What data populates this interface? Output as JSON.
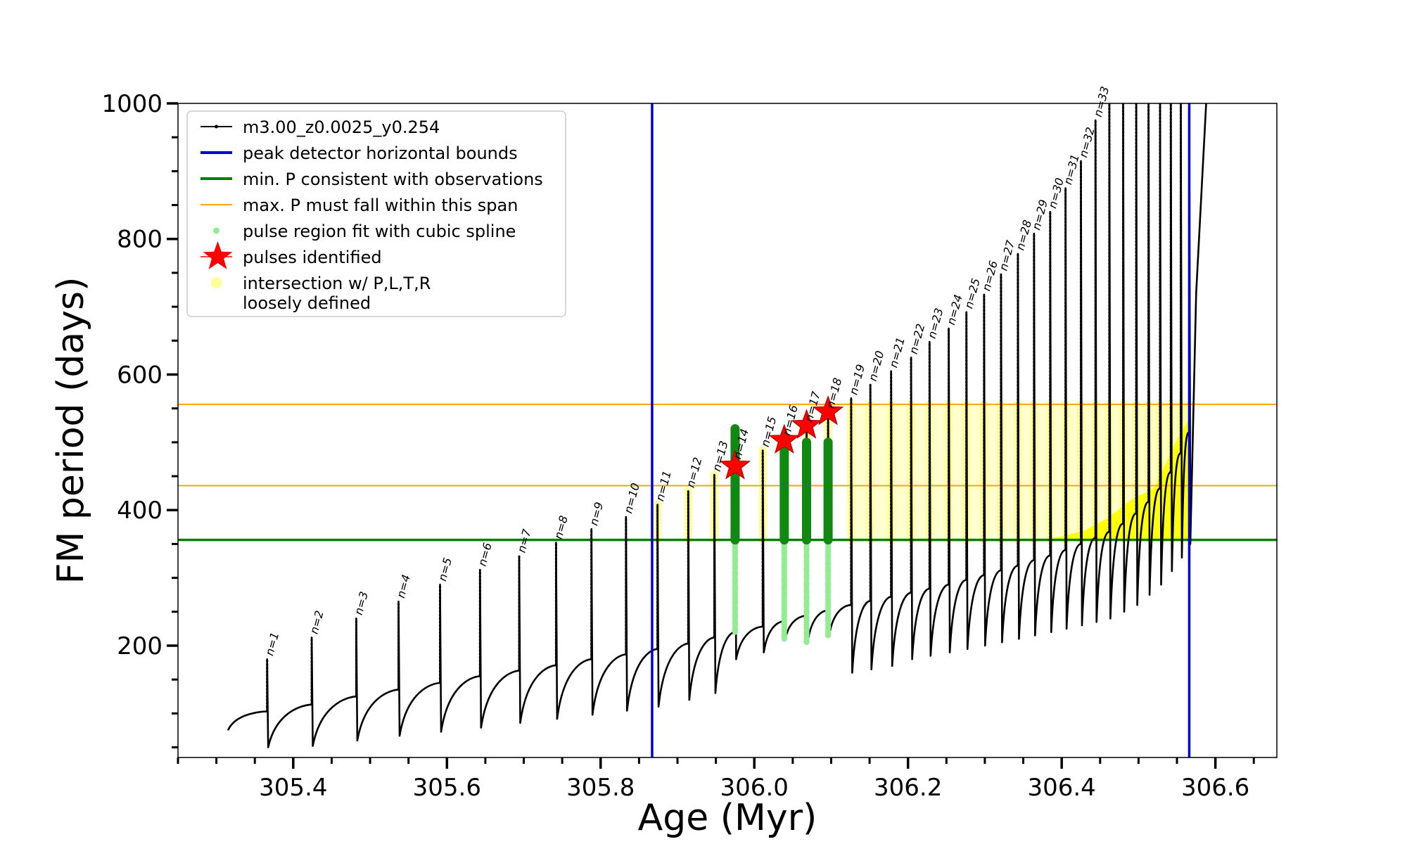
{
  "chart_data": {
    "type": "line",
    "xlabel": "Age (Myr)",
    "ylabel": "FM period (days)",
    "xlim": [
      305.25,
      306.68
    ],
    "ylim": [
      35,
      1000
    ],
    "xticks": [
      305.4,
      305.6,
      305.8,
      306.0,
      306.2,
      306.4,
      306.6
    ],
    "xtick_labels": [
      "305.4",
      "305.6",
      "305.8",
      "306.0",
      "306.2",
      "306.4",
      "306.6"
    ],
    "yticks": [
      200,
      400,
      600,
      800,
      1000
    ],
    "ytick_labels": [
      "200",
      "400",
      "600",
      "800",
      "1000"
    ],
    "grid": false,
    "legend_position": "top-left",
    "legend": [
      {
        "label": "m3.00_z0.0025_y0.254",
        "style": "line-dots",
        "color": "#000000"
      },
      {
        "label": "peak detector horizontal bounds",
        "style": "line",
        "color": "#0000dd"
      },
      {
        "label": "min. P consistent with observations",
        "style": "line",
        "color": "#008000"
      },
      {
        "label": "max. P must fall within this span",
        "style": "thin-line",
        "color": "#ffa500"
      },
      {
        "label": "pulse region fit with cubic spline",
        "style": "dot",
        "color": "#90ee90"
      },
      {
        "label": "pulses identified",
        "style": "star",
        "color": "#ff0000"
      },
      {
        "label": "intersection w/ P,L,T,R\nloosely defined",
        "style": "dot",
        "color": "#ffff99"
      }
    ],
    "vertical_lines": [
      {
        "x": 305.867,
        "color": "#0000dd"
      },
      {
        "x": 306.566,
        "color": "#0000dd"
      }
    ],
    "horizontal_lines": [
      {
        "y": 356,
        "color": "#008000"
      },
      {
        "y": 436,
        "color": "#ffa500"
      },
      {
        "y": 556,
        "color": "#ffa500"
      }
    ],
    "pulses": [
      {
        "label": "n=1",
        "age": 305.366,
        "peak": 180,
        "trough": 50,
        "base": 103
      },
      {
        "label": "n=2",
        "age": 305.424,
        "peak": 212,
        "trough": 52,
        "base": 113
      },
      {
        "label": "n=3",
        "age": 305.482,
        "peak": 240,
        "trough": 60,
        "base": 125
      },
      {
        "label": "n=4",
        "age": 305.537,
        "peak": 265,
        "trough": 67,
        "base": 135
      },
      {
        "label": "n=5",
        "age": 305.591,
        "peak": 290,
        "trough": 73,
        "base": 145
      },
      {
        "label": "n=6",
        "age": 305.643,
        "peak": 312,
        "trough": 79,
        "base": 155
      },
      {
        "label": "n=7",
        "age": 305.694,
        "peak": 332,
        "trough": 86,
        "base": 163
      },
      {
        "label": "n=8",
        "age": 305.742,
        "peak": 352,
        "trough": 92,
        "base": 171
      },
      {
        "label": "n=9",
        "age": 305.788,
        "peak": 372,
        "trough": 98,
        "base": 180
      },
      {
        "label": "n=10",
        "age": 305.833,
        "peak": 390,
        "trough": 104,
        "base": 187
      },
      {
        "label": "n=11",
        "age": 305.874,
        "peak": 408,
        "trough": 110,
        "base": 195
      },
      {
        "label": "n=12",
        "age": 305.914,
        "peak": 428,
        "trough": 120,
        "base": 203
      },
      {
        "label": "n=13",
        "age": 305.948,
        "peak": 452,
        "trough": 130,
        "base": 212
      },
      {
        "label": "n=14",
        "age": 305.975,
        "peak": 470,
        "trough": 180,
        "base": 220
      },
      {
        "label": "n=15",
        "age": 306.011,
        "peak": 488,
        "trough": 190,
        "base": 228
      },
      {
        "label": "n=16",
        "age": 306.039,
        "peak": 505,
        "trough": 210,
        "base": 236
      },
      {
        "label": "n=17",
        "age": 306.068,
        "peak": 525,
        "trough": 205,
        "base": 244
      },
      {
        "label": "n=18",
        "age": 306.096,
        "peak": 545,
        "trough": 215,
        "base": 252
      },
      {
        "label": "n=19",
        "age": 306.126,
        "peak": 565,
        "trough": 160,
        "base": 260
      },
      {
        "label": "n=20",
        "age": 306.151,
        "peak": 585,
        "trough": 165,
        "base": 266
      },
      {
        "label": "n=21",
        "age": 306.178,
        "peak": 605,
        "trough": 170,
        "base": 272
      },
      {
        "label": "n=22",
        "age": 306.204,
        "peak": 625,
        "trough": 180,
        "base": 278
      },
      {
        "label": "n=23",
        "age": 306.228,
        "peak": 648,
        "trough": 185,
        "base": 284
      },
      {
        "label": "n=24",
        "age": 306.253,
        "peak": 668,
        "trough": 190,
        "base": 290
      },
      {
        "label": "n=25",
        "age": 306.276,
        "peak": 692,
        "trough": 195,
        "base": 297
      },
      {
        "label": "n=26",
        "age": 306.299,
        "peak": 718,
        "trough": 200,
        "base": 304
      },
      {
        "label": "n=27",
        "age": 306.321,
        "peak": 748,
        "trough": 205,
        "base": 311
      },
      {
        "label": "n=28",
        "age": 306.343,
        "peak": 778,
        "trough": 210,
        "base": 318
      },
      {
        "label": "n=29",
        "age": 306.364,
        "peak": 808,
        "trough": 215,
        "base": 326
      },
      {
        "label": "n=30",
        "age": 306.385,
        "peak": 840,
        "trough": 220,
        "base": 333
      },
      {
        "label": "n=31",
        "age": 306.405,
        "peak": 875,
        "trough": 225,
        "base": 341
      },
      {
        "label": "n=32",
        "age": 306.425,
        "peak": 915,
        "trough": 230,
        "base": 350
      },
      {
        "label": "n=33",
        "age": 306.444,
        "peak": 975,
        "trough": 235,
        "base": 359
      },
      {
        "label": "",
        "age": 306.462,
        "peak": 1000,
        "trough": 240,
        "base": 368
      },
      {
        "label": "",
        "age": 306.48,
        "peak": 1000,
        "trough": 250,
        "base": 380
      },
      {
        "label": "",
        "age": 306.497,
        "peak": 1000,
        "trough": 260,
        "base": 395
      },
      {
        "label": "",
        "age": 306.513,
        "peak": 1000,
        "trough": 275,
        "base": 412
      },
      {
        "label": "",
        "age": 306.528,
        "peak": 1000,
        "trough": 290,
        "base": 432
      },
      {
        "label": "",
        "age": 306.542,
        "peak": 1000,
        "trough": 310,
        "base": 456
      },
      {
        "label": "",
        "age": 306.555,
        "peak": 1000,
        "trough": 330,
        "base": 484
      },
      {
        "label": "",
        "age": 306.566,
        "peak": 1000,
        "trough": 350,
        "base": 515
      }
    ],
    "track_start": {
      "age": 305.315,
      "period": 75
    },
    "track_end": [
      {
        "age": 306.575,
        "period": 720
      },
      {
        "age": 306.588,
        "period": 1000
      }
    ],
    "identified_pulses": [
      {
        "age": 305.975,
        "period": 465
      },
      {
        "age": 306.039,
        "period": 503
      },
      {
        "age": 306.068,
        "period": 525
      },
      {
        "age": 306.096,
        "period": 545
      }
    ],
    "spline_fit_pulses": [
      {
        "age": 305.975,
        "top": 520,
        "green_bottom": 356,
        "light_bottom": 220
      },
      {
        "age": 306.039,
        "top": 500,
        "green_bottom": 356,
        "light_bottom": 210
      },
      {
        "age": 306.068,
        "top": 500,
        "green_bottom": 356,
        "light_bottom": 205
      },
      {
        "age": 306.096,
        "top": 500,
        "green_bottom": 356,
        "light_bottom": 215
      }
    ]
  }
}
